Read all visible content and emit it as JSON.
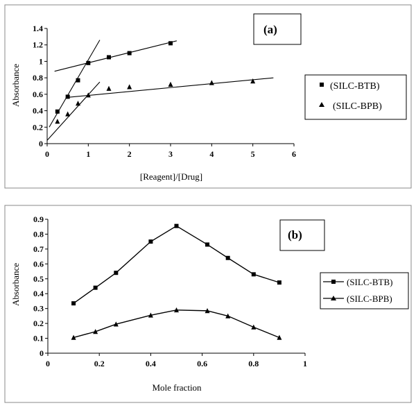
{
  "chart_data": [
    {
      "type": "scatter",
      "panel_label": "(a)",
      "xlabel": "[Reagent]/[Drug]",
      "ylabel": "Absorbance",
      "xlim": [
        0,
        6
      ],
      "ylim": [
        0,
        1.4
      ],
      "x_ticks": [
        0,
        1,
        2,
        3,
        4,
        5,
        6
      ],
      "y_ticks": [
        0,
        0.2,
        0.4,
        0.6,
        0.8,
        1,
        1.2,
        1.4
      ],
      "x_tick_labels": [
        "0",
        "1",
        "2",
        "3",
        "4",
        "5",
        "6"
      ],
      "y_tick_labels": [
        "0",
        "0.2",
        "0.4",
        "0.6",
        "0.8",
        "1",
        "1.2",
        "1.4"
      ],
      "grid": false,
      "legend_position": "right",
      "series": [
        {
          "name": "(SILC-BTB)",
          "marker": "square",
          "x": [
            0.25,
            0.5,
            0.75,
            1,
            1.5,
            2,
            3
          ],
          "y": [
            0.39,
            0.57,
            0.77,
            0.98,
            1.05,
            1.1,
            1.22
          ],
          "trendlines": [
            {
              "x": [
                0.05,
                1.28
              ],
              "y": [
                0.2,
                1.26
              ]
            },
            {
              "x": [
                0.18,
                3.15
              ],
              "y": [
                0.88,
                1.25
              ]
            }
          ]
        },
        {
          "name": "(SILC-BPB)",
          "marker": "triangle",
          "x": [
            0.25,
            0.5,
            0.75,
            1,
            1.5,
            2,
            3,
            4,
            5
          ],
          "y": [
            0.27,
            0.36,
            0.49,
            0.59,
            0.67,
            0.69,
            0.72,
            0.74,
            0.76
          ],
          "trendlines": [
            {
              "x": [
                0,
                1.28
              ],
              "y": [
                0.04,
                0.75
              ]
            },
            {
              "x": [
                0.45,
                5.5
              ],
              "y": [
                0.56,
                0.8
              ]
            }
          ]
        }
      ]
    },
    {
      "type": "line",
      "panel_label": "(b)",
      "xlabel": "Mole fraction",
      "ylabel": "Absorbance",
      "xlim": [
        0,
        1
      ],
      "ylim": [
        0,
        0.9
      ],
      "x_ticks": [
        0,
        0.2,
        0.4,
        0.6,
        0.8,
        1
      ],
      "y_ticks": [
        0,
        0.1,
        0.2,
        0.3,
        0.4,
        0.5,
        0.6,
        0.7,
        0.8,
        0.9
      ],
      "x_tick_labels": [
        "0",
        "0.2",
        "0.4",
        "0.6",
        "0.8",
        "1"
      ],
      "y_tick_labels": [
        "0",
        "0.1",
        "0.2",
        "0.3",
        "0.4",
        "0.5",
        "0.6",
        "0.7",
        "0.8",
        "0.9"
      ],
      "grid": false,
      "legend_position": "right",
      "series": [
        {
          "name": "(SILC-BTB)",
          "marker": "square",
          "x": [
            0.1,
            0.185,
            0.265,
            0.4,
            0.5,
            0.62,
            0.7,
            0.8,
            0.9
          ],
          "y": [
            0.335,
            0.44,
            0.54,
            0.75,
            0.855,
            0.73,
            0.64,
            0.53,
            0.475
          ]
        },
        {
          "name": "(SILC-BPB)",
          "marker": "triangle",
          "x": [
            0.1,
            0.185,
            0.265,
            0.4,
            0.5,
            0.62,
            0.7,
            0.8,
            0.9
          ],
          "y": [
            0.105,
            0.145,
            0.195,
            0.255,
            0.29,
            0.285,
            0.25,
            0.175,
            0.105
          ]
        }
      ]
    }
  ]
}
